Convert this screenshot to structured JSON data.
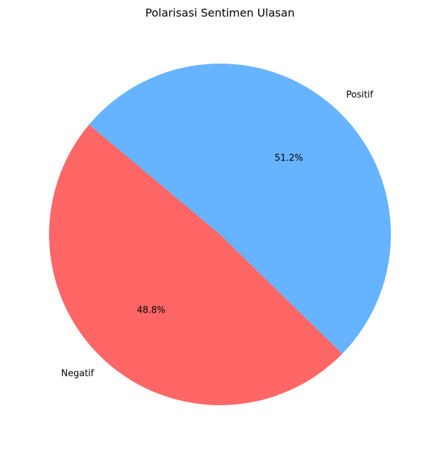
{
  "chart_data": {
    "type": "pie",
    "title": "Polarisasi Sentimen Ulasan",
    "slices": [
      {
        "label": "Negatif",
        "value": 48.8,
        "pct_label": "48.8%",
        "color": "#ff6666"
      },
      {
        "label": "Positif",
        "value": 51.2,
        "pct_label": "51.2%",
        "color": "#66b3ff"
      }
    ],
    "start_angle_deg": 140,
    "direction": "counterclockwise",
    "legend": "none"
  }
}
